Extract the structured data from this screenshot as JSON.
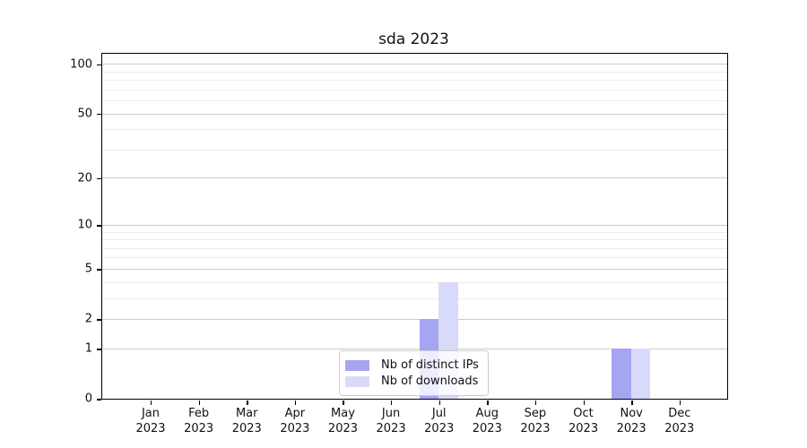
{
  "title": "sda 2023",
  "legend": {
    "items": [
      {
        "label": "Nb of distinct IPs",
        "color": "#a5a5f2"
      },
      {
        "label": "Nb of downloads",
        "color": "#d9d9f9"
      }
    ]
  },
  "chart_data": {
    "type": "bar",
    "title": "sda 2023",
    "categories": [
      "Jan",
      "Feb",
      "Mar",
      "Apr",
      "May",
      "Jun",
      "Jul",
      "Aug",
      "Sep",
      "Oct",
      "Nov",
      "Dec"
    ],
    "category_year": "2023",
    "series": [
      {
        "name": "Nb of distinct IPs",
        "color": "#a5a5f2",
        "values": [
          0,
          0,
          0,
          0,
          0,
          0,
          2,
          0,
          0,
          0,
          1,
          0
        ]
      },
      {
        "name": "Nb of downloads",
        "color": "#d9d9f9",
        "values": [
          0,
          0,
          0,
          0,
          0,
          0,
          4,
          0,
          0,
          0,
          1,
          0
        ]
      }
    ],
    "xlabel": "",
    "ylabel": "",
    "yscale": "log1p",
    "ylim": [
      0,
      115
    ],
    "y_major_ticks": [
      0,
      1,
      2,
      5,
      10,
      20,
      50,
      100
    ],
    "y_minor_gridlines": [
      3,
      4,
      6,
      7,
      8,
      9,
      30,
      40,
      60,
      70,
      80,
      90
    ],
    "grid": true,
    "legend_position": "lower-center",
    "colors": {
      "spine": "#000000",
      "major_grid": "#cccccc",
      "minor_grid": "#ebebeb",
      "text": "#111111",
      "background": "#ffffff"
    }
  }
}
